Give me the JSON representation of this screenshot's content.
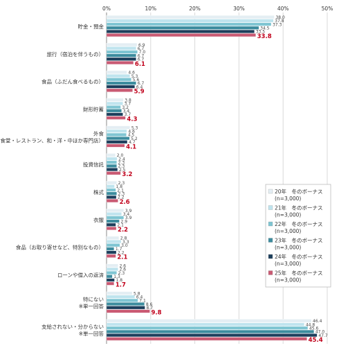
{
  "chart_data": {
    "type": "bar",
    "orientation": "horizontal",
    "xlim": [
      0,
      50
    ],
    "x_ticks": [
      "0%",
      "10%",
      "20%",
      "30%",
      "40%",
      "50%"
    ],
    "grid": true,
    "legend_position": "right",
    "categories": [
      "貯金・預金",
      "旅行（宿泊を伴うもの）",
      "食品（ふだん食べるもの）",
      "財形貯蓄",
      "外食\n（食堂・レストラン、和・洋・中ほか専門店）",
      "投資信託",
      "株式",
      "衣服",
      "食品（お取り寄せなど、特別なもの）",
      "ローンや借入の返済",
      "特にない\n※単一回答",
      "支給されない・分からない\n※単一回答"
    ],
    "series": [
      {
        "name": "20年　冬のボーナス\n(n=3,000)",
        "color": "#e4eef3",
        "values": [
          38.0,
          6.9,
          4.6,
          3.8,
          5.3,
          2.0,
          2.3,
          3.9,
          2.8,
          2.6,
          5.8,
          46.4
        ]
      },
      {
        "name": "21年　冬のボーナス\n(n=3,000)",
        "color": "#bfe4ee",
        "values": [
          37.8,
          6.7,
          5.3,
          3.7,
          4.6,
          2.4,
          1.8,
          3.4,
          3.3,
          2.6,
          6.4,
          44.8
        ]
      },
      {
        "name": "22年　冬のボーナス\n(n=3,000)",
        "color": "#7fc5d2",
        "values": [
          37.3,
          7.0,
          5.6,
          3.2,
          4.5,
          2.3,
          2.1,
          3.9,
          3.0,
          2.3,
          7.1,
          45.6
        ]
      },
      {
        "name": "23年　冬のボーナス\n(n=3,000)",
        "color": "#3c8c9e",
        "values": [
          34.5,
          6.7,
          6.7,
          3.4,
          5.2,
          2.3,
          2.3,
          2.9,
          1.7,
          1.3,
          8.6,
          47.0
        ]
      },
      {
        "name": "24年　冬のボーナス\n(n=3,000)",
        "color": "#1d3f5c",
        "values": [
          33.5,
          6.7,
          6.4,
          3.7,
          4.7,
          2.5,
          2.2,
          2.1,
          2.2,
          1.8,
          8.7,
          47.7
        ]
      },
      {
        "name": "25年　冬のボーナス\n(n=3,000)",
        "color": "#c95a73",
        "values": [
          33.8,
          6.1,
          5.9,
          4.3,
          4.1,
          3.2,
          2.6,
          2.2,
          2.1,
          1.7,
          9.8,
          45.4
        ]
      }
    ]
  }
}
